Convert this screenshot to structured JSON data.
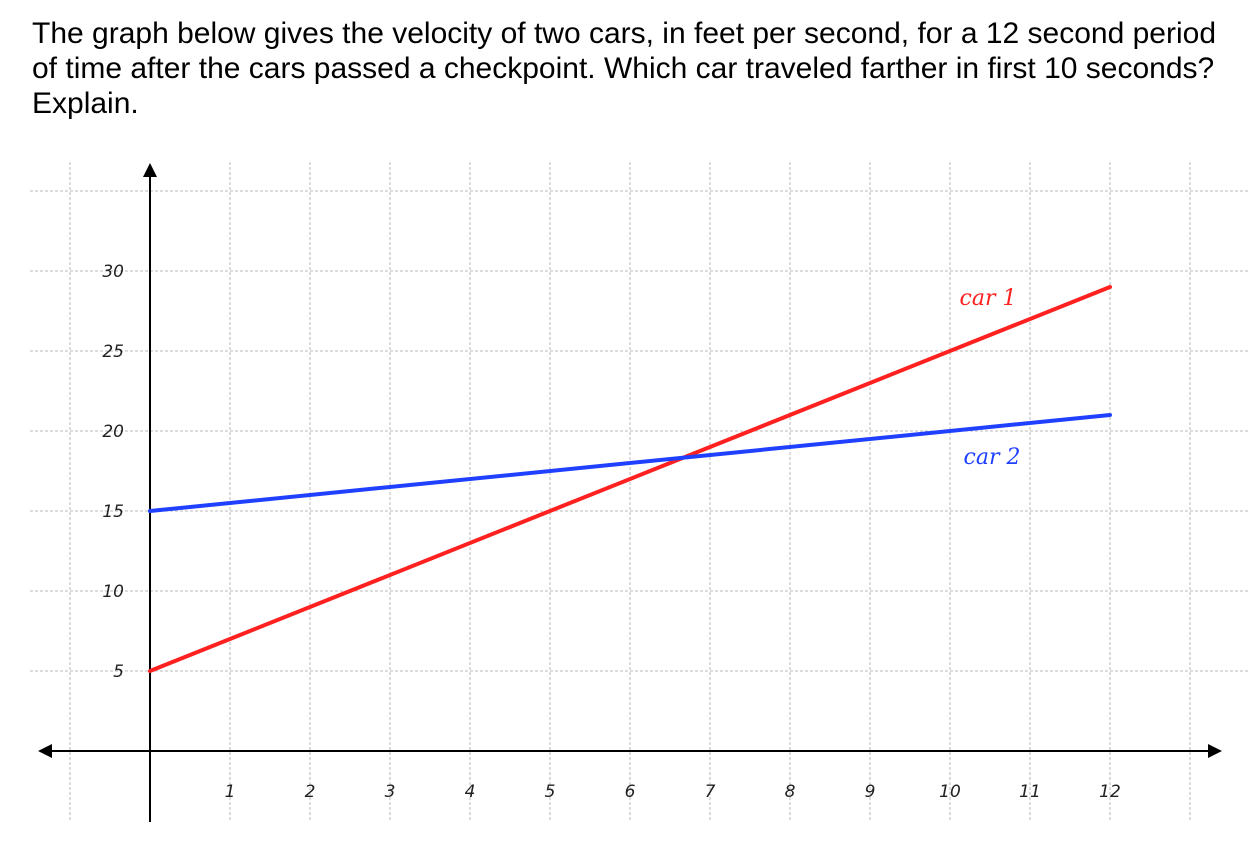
{
  "question": {
    "text": "The graph below gives the velocity of two cars, in feet per second, for a 12 second period of time after the cars passed a checkpoint.  Which car traveled farther in first 10 seconds?  Explain."
  },
  "chart_data": {
    "type": "line",
    "title": "",
    "xlabel": "",
    "ylabel": "",
    "xlim": [
      0,
      12
    ],
    "ylim": [
      0,
      30
    ],
    "x_ticks": [
      1,
      2,
      3,
      4,
      5,
      6,
      7,
      8,
      9,
      10,
      11,
      12
    ],
    "y_ticks": [
      5,
      10,
      15,
      20,
      25,
      30
    ],
    "grid": true,
    "series": [
      {
        "name": "car 1",
        "color": "#ff2020",
        "x": [
          0,
          12
        ],
        "y": [
          5,
          29
        ]
      },
      {
        "name": "car 2",
        "color": "#2040ff",
        "x": [
          0,
          12
        ],
        "y": [
          15,
          21
        ]
      }
    ]
  }
}
